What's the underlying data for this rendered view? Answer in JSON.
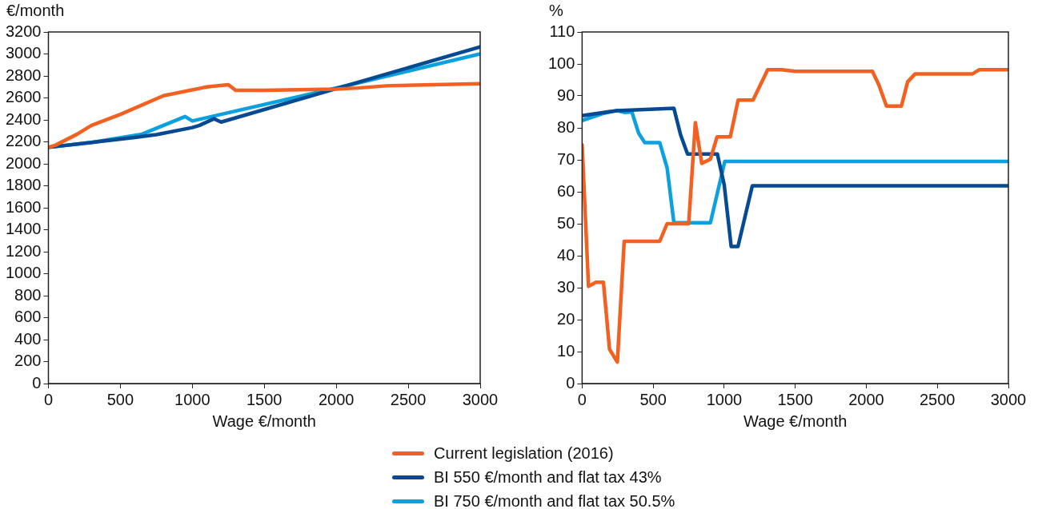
{
  "chart_data": [
    {
      "type": "line",
      "ylabel": "€/month",
      "xlabel": "Wage €/month",
      "xlim": [
        0,
        3000
      ],
      "xticks": [
        0,
        500,
        1000,
        1500,
        2000,
        2500,
        3000
      ],
      "ylim": [
        0,
        3200
      ],
      "yticks": [
        0,
        200,
        400,
        600,
        800,
        1000,
        1200,
        1400,
        1600,
        1800,
        2000,
        2200,
        2400,
        2600,
        2800,
        3000,
        3200
      ],
      "grid": false,
      "legend": "bottom",
      "marker": "none",
      "line_style": "solid",
      "series": [
        {
          "name": "Current legislation (2016)",
          "color": "#f26122",
          "x": [
            0,
            50,
            200,
            300,
            500,
            800,
            1100,
            1250,
            1300,
            1500,
            2000,
            2150,
            2350,
            3000
          ],
          "values": [
            2150,
            2170,
            2270,
            2350,
            2450,
            2620,
            2700,
            2720,
            2670,
            2670,
            2680,
            2690,
            2710,
            2730
          ]
        },
        {
          "name": "BI 550 €/month and flat tax 43%",
          "color": "#064a94",
          "x": [
            0,
            300,
            600,
            750,
            1000,
            1050,
            1150,
            1200,
            3000
          ],
          "values": [
            2150,
            2195,
            2240,
            2265,
            2330,
            2350,
            2410,
            2380,
            3065
          ]
        },
        {
          "name": "BI 750 €/month and flat tax 50.5%",
          "color": "#0ba0de",
          "x": [
            0,
            300,
            650,
            950,
            1000,
            2100,
            3000
          ],
          "values": [
            2150,
            2195,
            2270,
            2430,
            2390,
            2720,
            3000
          ]
        }
      ]
    },
    {
      "type": "line",
      "ylabel": "%",
      "xlabel": "Wage €/month",
      "xlim": [
        0,
        3000
      ],
      "xticks": [
        0,
        500,
        1000,
        1500,
        2000,
        2500,
        3000
      ],
      "ylim": [
        0,
        110
      ],
      "yticks": [
        0,
        10,
        20,
        30,
        40,
        50,
        60,
        70,
        80,
        90,
        100,
        110
      ],
      "grid": false,
      "legend": false,
      "marker": "none",
      "line_style": "solid",
      "series": [
        {
          "color": "#f26122",
          "x": [
            0,
            45,
            97,
            150,
            193,
            248,
            296,
            546,
            598,
            750,
            797,
            842,
            903,
            950,
            1043,
            1098,
            1203,
            1306,
            1404,
            1500,
            2043,
            2088,
            2142,
            2247,
            2291,
            2344,
            2748,
            2796,
            3000
          ],
          "values": [
            74.7,
            30.4,
            31.7,
            31.7,
            10.7,
            6.7,
            44.5,
            44.5,
            50,
            50,
            81.6,
            68.9,
            70.2,
            77.2,
            77.2,
            88.7,
            88.7,
            98.2,
            98.2,
            97.7,
            97.7,
            93.5,
            86.8,
            86.8,
            94.4,
            96.9,
            96.9,
            98.2,
            98.2
          ]
        },
        {
          "color": "#064a94",
          "x": [
            0,
            243,
            646,
            693,
            742,
            952,
            1000,
            1049,
            1097,
            1198,
            3000
          ],
          "values": [
            83.8,
            85.4,
            86.1,
            77.8,
            71.8,
            71.8,
            62.2,
            42.9,
            42.9,
            61.9,
            61.9
          ]
        },
        {
          "color": "#0ba0de",
          "x": [
            0,
            146,
            243,
            302,
            350,
            398,
            441,
            546,
            598,
            646,
            903,
            1004,
            3000
          ],
          "values": [
            82.3,
            84.5,
            85.4,
            84.8,
            85,
            78.3,
            75.4,
            75.4,
            67.5,
            50.3,
            50.3,
            69.5,
            69.5
          ]
        }
      ]
    }
  ]
}
